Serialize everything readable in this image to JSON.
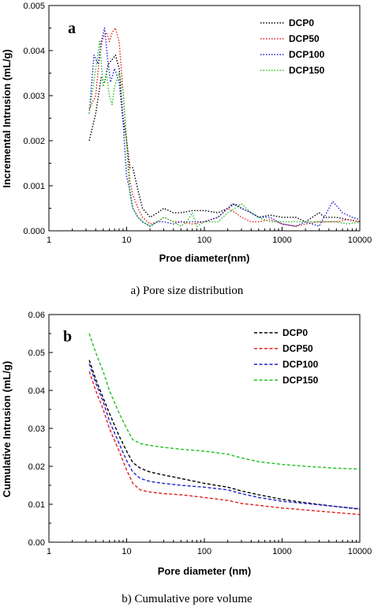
{
  "chart_data": [
    {
      "type": "line",
      "panel_label": "a",
      "caption": "a) Pore size distribution",
      "xlabel": "Proe diameter(nm)",
      "ylabel": "Incremental Intrusion (mL/g)",
      "xscale": "log",
      "xlim": [
        1,
        10000
      ],
      "ylim": [
        0,
        0.005
      ],
      "xticks": [
        1,
        10,
        100,
        1000,
        10000
      ],
      "xtick_labels": [
        "1",
        "10",
        "100",
        "1000",
        "10000"
      ],
      "yticks": [
        0,
        0.001,
        0.002,
        0.003,
        0.004,
        0.005
      ],
      "ytick_labels": [
        "0.000",
        "0.001",
        "0.002",
        "0.003",
        "0.004",
        "0.005"
      ],
      "legend_position": "top-right",
      "line_style": "dotted",
      "series": [
        {
          "name": "DCP0",
          "color": "#000000",
          "x": [
            3.3,
            4,
            4.7,
            5.2,
            5.8,
            6.5,
            7.2,
            8,
            9,
            10,
            11,
            12,
            14,
            16,
            20,
            25,
            30,
            40,
            50,
            70,
            100,
            150,
            200,
            230,
            300,
            400,
            500,
            700,
            1000,
            1500,
            2000,
            3000,
            3500,
            5000,
            7000,
            10000
          ],
          "y": [
            0.002,
            0.0026,
            0.0034,
            0.0033,
            0.0037,
            0.0038,
            0.0039,
            0.0036,
            0.0025,
            0.002,
            0.0014,
            0.0014,
            0.0009,
            0.0005,
            0.0003,
            0.0004,
            0.0005,
            0.0004,
            0.0004,
            0.00045,
            0.00045,
            0.0004,
            0.0005,
            0.0006,
            0.0005,
            0.0004,
            0.0003,
            0.00035,
            0.0003,
            0.0003,
            0.0002,
            0.0004,
            0.0003,
            0.0003,
            0.00025,
            0.0002
          ]
        },
        {
          "name": "DCP50",
          "color": "#e02020",
          "x": [
            3.3,
            4,
            4.5,
            5,
            5.5,
            6,
            6.5,
            7.2,
            8,
            9,
            10,
            11,
            12,
            14,
            16,
            20,
            25,
            30,
            40,
            50,
            70,
            100,
            150,
            200,
            250,
            300,
            400,
            500,
            700,
            1000,
            1500,
            2000,
            3000,
            5000,
            7000,
            10000
          ],
          "y": [
            0.0027,
            0.003,
            0.0039,
            0.0043,
            0.0044,
            0.0042,
            0.0044,
            0.0045,
            0.0042,
            0.0031,
            0.002,
            0.0011,
            0.0008,
            0.0005,
            0.0003,
            0.00015,
            0.0002,
            0.0003,
            0.0002,
            0.0002,
            0.00015,
            0.0002,
            0.0003,
            0.0005,
            0.0004,
            0.0003,
            0.0002,
            0.0002,
            0.00025,
            0.00015,
            0.0001,
            0.00015,
            0.0002,
            0.0002,
            0.00025,
            0.0002
          ]
        },
        {
          "name": "DCP100",
          "color": "#2020d0",
          "x": [
            3.3,
            3.8,
            4.3,
            4.7,
            5.2,
            5.7,
            6.2,
            7,
            8,
            9,
            10,
            11,
            12,
            14,
            16,
            20,
            25,
            30,
            40,
            50,
            70,
            100,
            150,
            200,
            250,
            300,
            400,
            500,
            700,
            1000,
            1500,
            2000,
            3000,
            4500,
            6000,
            8000,
            10000
          ],
          "y": [
            0.0026,
            0.0039,
            0.0037,
            0.0042,
            0.0045,
            0.0038,
            0.0033,
            0.0036,
            0.0033,
            0.0024,
            0.0012,
            0.0009,
            0.0005,
            0.0003,
            0.0002,
            0.0001,
            0.0002,
            0.0002,
            0.00015,
            0.0002,
            0.0002,
            0.0002,
            0.0003,
            0.0005,
            0.0006,
            0.0005,
            0.0004,
            0.0003,
            0.0003,
            0.00015,
            0.0001,
            0.0002,
            0.0001,
            0.00065,
            0.0004,
            0.0003,
            0.00025
          ]
        },
        {
          "name": "DCP150",
          "color": "#20c020",
          "x": [
            3.3,
            4,
            4.5,
            5,
            5.5,
            6,
            6.5,
            7,
            8,
            9,
            10,
            11,
            12,
            14,
            16,
            20,
            25,
            30,
            40,
            50,
            60,
            70,
            80,
            100,
            150,
            200,
            250,
            300,
            400,
            500,
            700,
            1000,
            1500,
            2000,
            3000,
            5000,
            7000,
            10000
          ],
          "y": [
            0.0026,
            0.0036,
            0.0042,
            0.0032,
            0.0035,
            0.003,
            0.0028,
            0.0032,
            0.0035,
            0.0031,
            0.0019,
            0.0008,
            0.0005,
            0.0003,
            0.0002,
            0.0001,
            0.0002,
            0.0003,
            0.0002,
            0.0001,
            0.0002,
            0.0004,
            0.0001,
            0.0002,
            0.0002,
            0.0004,
            0.0005,
            0.0006,
            0.0004,
            0.0003,
            0.0002,
            0.0002,
            0.0002,
            0.0002,
            0.0002,
            0.0002,
            0.00015,
            0.0002
          ]
        }
      ]
    },
    {
      "type": "line",
      "panel_label": "b",
      "caption": "b) Cumulative pore volume",
      "xlabel": "Pore diameter (nm)",
      "ylabel": "Cumulative Intrusion (mL/g)",
      "xscale": "log",
      "xlim": [
        1,
        10000
      ],
      "ylim": [
        0,
        0.06
      ],
      "xticks": [
        1,
        10,
        100,
        1000,
        10000
      ],
      "xtick_labels": [
        "1",
        "10",
        "100",
        "1000",
        "10000"
      ],
      "yticks": [
        0,
        0.01,
        0.02,
        0.03,
        0.04,
        0.05,
        0.06
      ],
      "ytick_labels": [
        "0.00",
        "0.01",
        "0.02",
        "0.03",
        "0.04",
        "0.05",
        "0.06"
      ],
      "legend_position": "top-right",
      "line_style": "dashed",
      "series": [
        {
          "name": "DCP0",
          "color": "#000000",
          "x": [
            3.3,
            4,
            5,
            6,
            8,
            10,
            12,
            15,
            20,
            30,
            50,
            100,
            200,
            300,
            500,
            1000,
            2000,
            5000,
            10000
          ],
          "y": [
            0.048,
            0.043,
            0.038,
            0.034,
            0.028,
            0.024,
            0.021,
            0.0195,
            0.0185,
            0.0177,
            0.0168,
            0.0155,
            0.0145,
            0.0135,
            0.0125,
            0.0113,
            0.0104,
            0.0094,
            0.0087
          ]
        },
        {
          "name": "DCP50",
          "color": "#e02020",
          "x": [
            3.3,
            4,
            5,
            6,
            8,
            10,
            12,
            15,
            20,
            30,
            50,
            100,
            200,
            300,
            500,
            1000,
            2000,
            5000,
            10000
          ],
          "y": [
            0.045,
            0.04,
            0.035,
            0.03,
            0.024,
            0.019,
            0.0155,
            0.0138,
            0.0132,
            0.0128,
            0.0125,
            0.0118,
            0.011,
            0.0102,
            0.0097,
            0.009,
            0.0085,
            0.0078,
            0.0073
          ]
        },
        {
          "name": "DCP100",
          "color": "#2020d0",
          "x": [
            3.3,
            4,
            5,
            6,
            8,
            10,
            12,
            15,
            20,
            30,
            50,
            100,
            200,
            300,
            500,
            1000,
            2000,
            5000,
            10000
          ],
          "y": [
            0.047,
            0.042,
            0.037,
            0.032,
            0.026,
            0.0215,
            0.0185,
            0.0168,
            0.016,
            0.0155,
            0.015,
            0.0145,
            0.0138,
            0.0128,
            0.0118,
            0.0108,
            0.0102,
            0.0094,
            0.0088
          ]
        },
        {
          "name": "DCP150",
          "color": "#20c020",
          "x": [
            3.3,
            4,
            5,
            6,
            8,
            10,
            12,
            15,
            20,
            30,
            50,
            100,
            200,
            300,
            500,
            1000,
            2000,
            5000,
            10000
          ],
          "y": [
            0.055,
            0.05,
            0.045,
            0.04,
            0.034,
            0.03,
            0.027,
            0.026,
            0.0255,
            0.025,
            0.0245,
            0.024,
            0.0232,
            0.0222,
            0.0212,
            0.0205,
            0.02,
            0.0195,
            0.0193
          ]
        }
      ]
    }
  ]
}
